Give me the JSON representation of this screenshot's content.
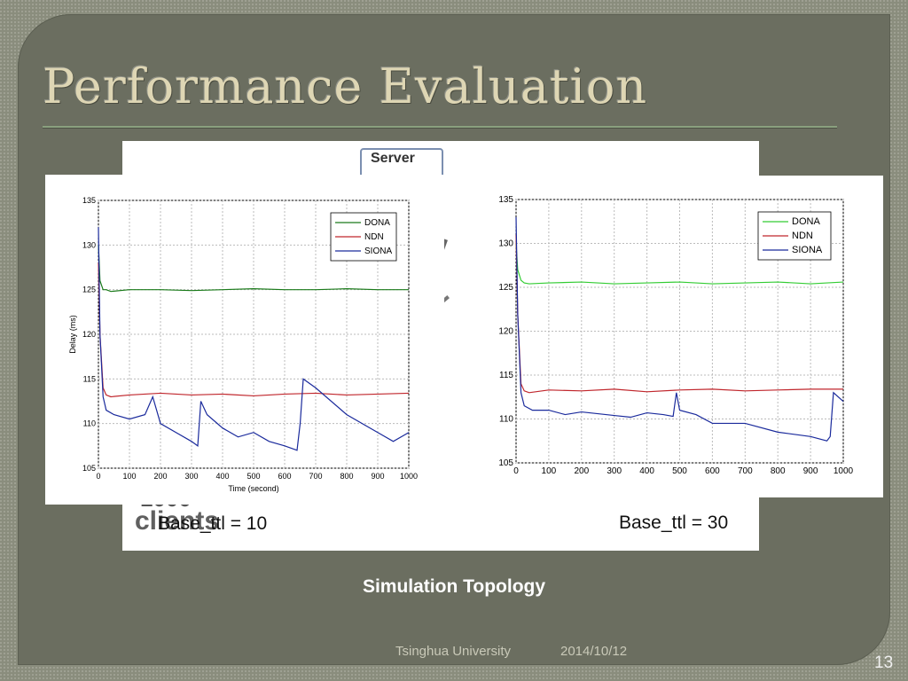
{
  "slide": {
    "title": "Performance Evaluation",
    "caption": "Simulation Topology",
    "footer_org": "Tsinghua University",
    "footer_date": "2014/10/12",
    "page_number": "13"
  },
  "background": {
    "base_label_left": "Base_ttl = 10",
    "base_label_right": "Base_ttl = 30",
    "topology_fragments": {
      "server": "Server",
      "clients_number": "1000",
      "clients": "clients"
    }
  },
  "colors": {
    "DONA_left": "#1a7a1a",
    "DONA_right": "#33cc33",
    "NDN": "#c0262c",
    "SIONA": "#1a2a9c",
    "title": "#ded6b4"
  },
  "chart_data": [
    {
      "type": "line",
      "xlabel": "Time (second)",
      "ylabel": "Delay (ms)",
      "xlim": [
        0,
        1000
      ],
      "ylim": [
        105,
        135
      ],
      "xticks": [
        0,
        100,
        200,
        300,
        400,
        500,
        600,
        700,
        800,
        900,
        1000
      ],
      "yticks": [
        105,
        110,
        115,
        120,
        125,
        130,
        135
      ],
      "grid": true,
      "legend": "top-right",
      "series": [
        {
          "name": "DONA",
          "color": "#1a7a1a",
          "x": [
            0,
            5,
            15,
            25,
            40,
            100,
            200,
            300,
            400,
            500,
            600,
            700,
            800,
            900,
            1000
          ],
          "y": [
            130,
            126,
            125,
            125,
            124.8,
            125,
            125,
            124.9,
            125,
            125.1,
            125,
            125,
            125.1,
            125,
            125
          ]
        },
        {
          "name": "NDN",
          "color": "#c0262c",
          "x": [
            0,
            5,
            15,
            25,
            40,
            100,
            200,
            300,
            400,
            500,
            600,
            700,
            800,
            900,
            1000
          ],
          "y": [
            128,
            120,
            114,
            113.2,
            113,
            113.2,
            113.4,
            113.2,
            113.3,
            113.1,
            113.3,
            113.4,
            113.2,
            113.3,
            113.4
          ]
        },
        {
          "name": "SIONA",
          "color": "#1a2a9c",
          "x": [
            0,
            5,
            15,
            25,
            50,
            100,
            150,
            175,
            200,
            250,
            300,
            320,
            330,
            350,
            400,
            450,
            500,
            550,
            600,
            640,
            650,
            660,
            700,
            800,
            900,
            950,
            1000
          ],
          "y": [
            132,
            120,
            113,
            111.5,
            111,
            110.5,
            111,
            113,
            110,
            109,
            108,
            107.5,
            112.5,
            111,
            109.5,
            108.5,
            109,
            108,
            107.5,
            107,
            110,
            115,
            114,
            111,
            109,
            108,
            109
          ]
        }
      ]
    },
    {
      "type": "line",
      "xlabel": "",
      "ylabel": "",
      "xlim": [
        0,
        1000
      ],
      "ylim": [
        105,
        135
      ],
      "xticks": [
        0,
        100,
        200,
        300,
        400,
        500,
        600,
        700,
        800,
        900,
        1000
      ],
      "yticks": [
        105,
        110,
        115,
        120,
        125,
        130,
        135
      ],
      "grid": true,
      "legend": "top-right",
      "series": [
        {
          "name": "DONA",
          "color": "#33cc33",
          "x": [
            0,
            5,
            15,
            25,
            40,
            100,
            200,
            300,
            400,
            500,
            600,
            700,
            800,
            900,
            1000
          ],
          "y": [
            130,
            127,
            125.8,
            125.5,
            125.4,
            125.5,
            125.6,
            125.4,
            125.5,
            125.6,
            125.4,
            125.5,
            125.6,
            125.4,
            125.6
          ]
        },
        {
          "name": "NDN",
          "color": "#c0262c",
          "x": [
            0,
            5,
            15,
            25,
            40,
            100,
            200,
            300,
            400,
            500,
            600,
            700,
            800,
            900,
            1000
          ],
          "y": [
            131,
            122,
            114,
            113.2,
            113,
            113.3,
            113.2,
            113.4,
            113.1,
            113.3,
            113.4,
            113.2,
            113.3,
            113.4,
            113.4
          ]
        },
        {
          "name": "SIONA",
          "color": "#1a2a9c",
          "x": [
            0,
            5,
            15,
            25,
            50,
            100,
            150,
            200,
            250,
            300,
            350,
            400,
            450,
            480,
            490,
            500,
            550,
            600,
            700,
            800,
            900,
            950,
            960,
            970,
            1000
          ],
          "y": [
            133,
            122,
            113,
            111.5,
            111,
            111,
            110.5,
            110.8,
            110.6,
            110.4,
            110.2,
            110.7,
            110.5,
            110.3,
            113,
            111,
            110.5,
            109.5,
            109.5,
            108.5,
            108,
            107.5,
            108,
            113,
            112
          ]
        }
      ]
    }
  ]
}
